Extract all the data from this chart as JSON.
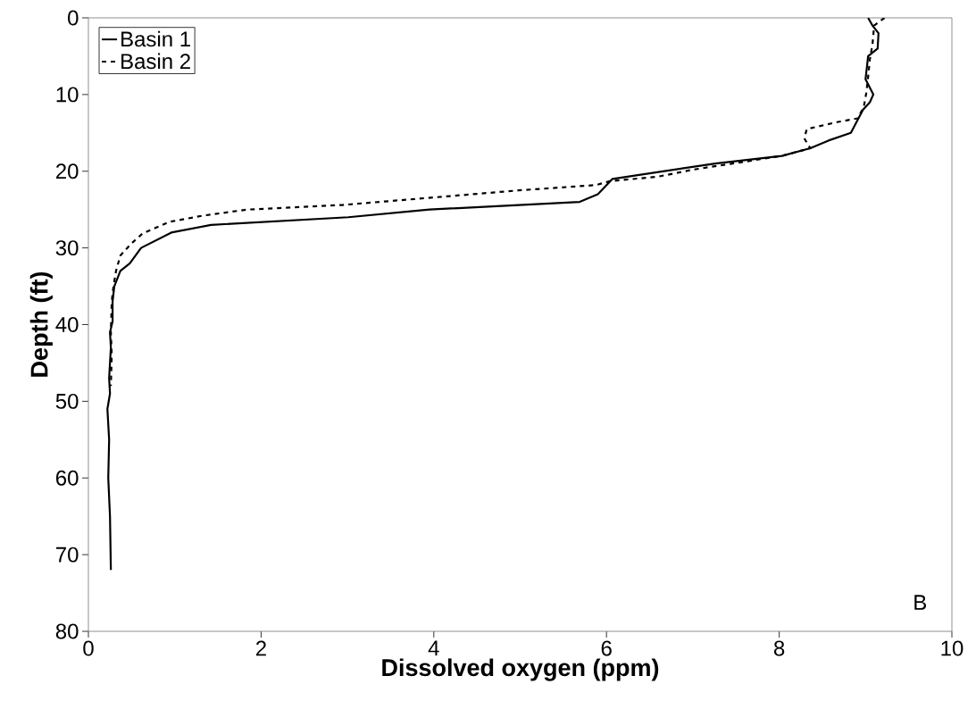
{
  "chart_data": {
    "type": "line",
    "xlabel": "Dissolved oxygen (ppm)",
    "ylabel": "Depth (ft)",
    "xlim": [
      0,
      10
    ],
    "xticks": [
      0,
      2,
      4,
      6,
      8,
      10
    ],
    "ylim": [
      80,
      0
    ],
    "yticks": [
      0,
      10,
      20,
      30,
      40,
      50,
      60,
      70,
      80
    ],
    "grid": false,
    "legend": "top left",
    "marker": "none",
    "annotations": [
      "B"
    ],
    "series": [
      {
        "name": "Basin 1",
        "color": "#000000",
        "line_style": "solid",
        "x": [
          9.03,
          9.08,
          9.15,
          9.14,
          9.03,
          9.0,
          9.09,
          9.05,
          8.97,
          8.83,
          8.57,
          8.36,
          8.03,
          7.26,
          6.07,
          5.9,
          5.69,
          3.95,
          3.01,
          1.42,
          0.96,
          0.61,
          0.48,
          0.37,
          0.3,
          0.28,
          0.28,
          0.25,
          0.26,
          0.24,
          0.25,
          0.22,
          0.24,
          0.23,
          0.25,
          0.26
        ],
        "values": [
          0,
          1,
          2,
          4,
          5,
          8,
          10,
          11,
          12,
          15,
          16,
          17,
          18,
          19,
          21,
          23,
          24,
          25,
          26,
          27,
          28,
          30,
          32,
          33,
          35,
          37,
          39.6,
          41,
          43,
          47,
          49,
          51,
          55,
          60,
          65,
          72
        ]
      },
      {
        "name": "Basin 2",
        "color": "#000000",
        "line_style": "dashed",
        "x": [
          9.22,
          9.1,
          9.08,
          9.05,
          9.03,
          9.01,
          8.98,
          8.91,
          8.67,
          8.32,
          8.29,
          8.36,
          8.03,
          7.0,
          6.6,
          6.04,
          5.88,
          4.98,
          4.02,
          2.94,
          1.84,
          1.32,
          0.94,
          0.63,
          0.49,
          0.37,
          0.32,
          0.29,
          0.27,
          0.26,
          0.27,
          0.26
        ],
        "values": [
          0,
          1,
          3.5,
          5.4,
          7.7,
          9.7,
          11.6,
          13.1,
          13.6,
          14.5,
          15.7,
          17,
          18,
          19.8,
          20.7,
          21.3,
          21.8,
          22.5,
          23.4,
          24.4,
          25,
          25.8,
          26.6,
          28.1,
          29.5,
          31,
          33,
          35,
          37,
          41,
          44,
          48
        ]
      }
    ]
  }
}
